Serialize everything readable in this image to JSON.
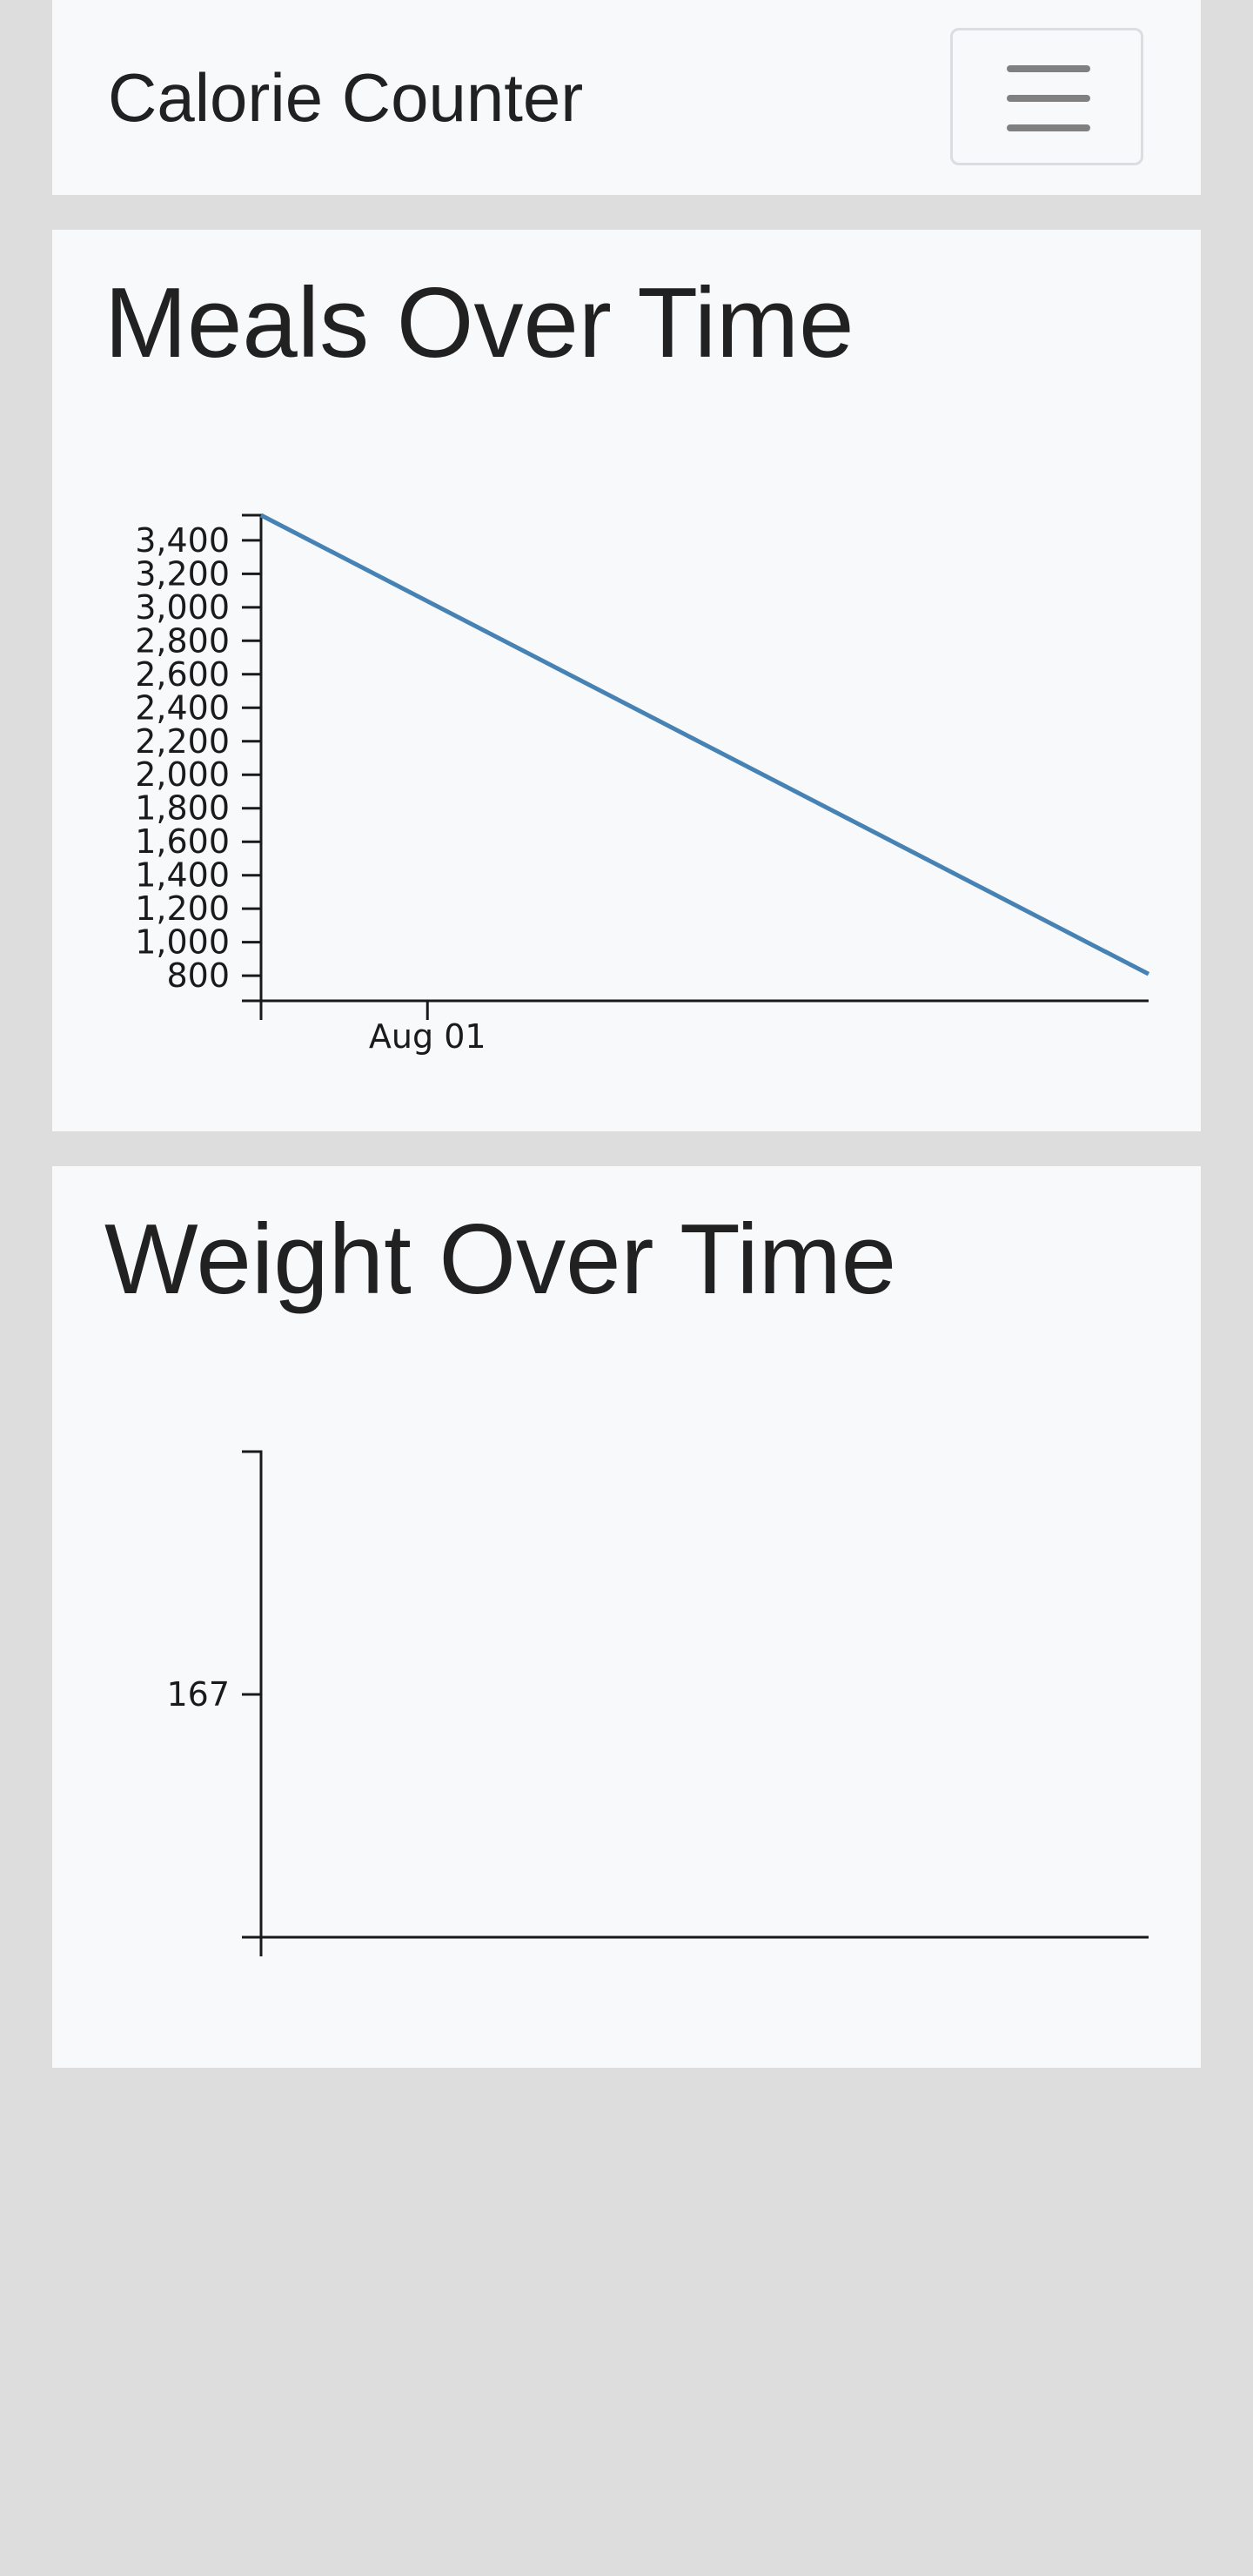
{
  "navbar": {
    "brand": "Calorie Counter"
  },
  "meals_card": {
    "title": "Meals Over Time"
  },
  "weight_card": {
    "title": "Weight Over Time"
  },
  "chart_data": [
    {
      "type": "line",
      "y_ticks": [
        800,
        1000,
        1200,
        1400,
        1600,
        1800,
        2000,
        2200,
        2400,
        2600,
        2800,
        3000,
        3200,
        3400
      ],
      "y_tick_labels": [
        "800",
        "1,000",
        "1,200",
        "1,400",
        "1,600",
        "1,800",
        "2,000",
        "2,200",
        "2,400",
        "2,600",
        "2,800",
        "3,000",
        "3,200",
        "3,400"
      ],
      "x_tick_labels": [
        "Aug 01"
      ],
      "ylim": [
        650,
        3550
      ],
      "xlim": [
        "2017-07-29",
        "2017-08-14"
      ],
      "x_tick_values": [
        "2017-08-01"
      ],
      "series": [
        {
          "x": [
            "2017-07-29",
            "2017-08-14"
          ],
          "values": [
            3550,
            810
          ],
          "color": "#4682b4"
        }
      ],
      "grid": false
    },
    {
      "type": "line",
      "y_ticks": [
        167
      ],
      "y_tick_labels": [
        "167"
      ],
      "x_tick_labels": [],
      "ylim": [
        166,
        168
      ],
      "series": [],
      "grid": false
    }
  ]
}
